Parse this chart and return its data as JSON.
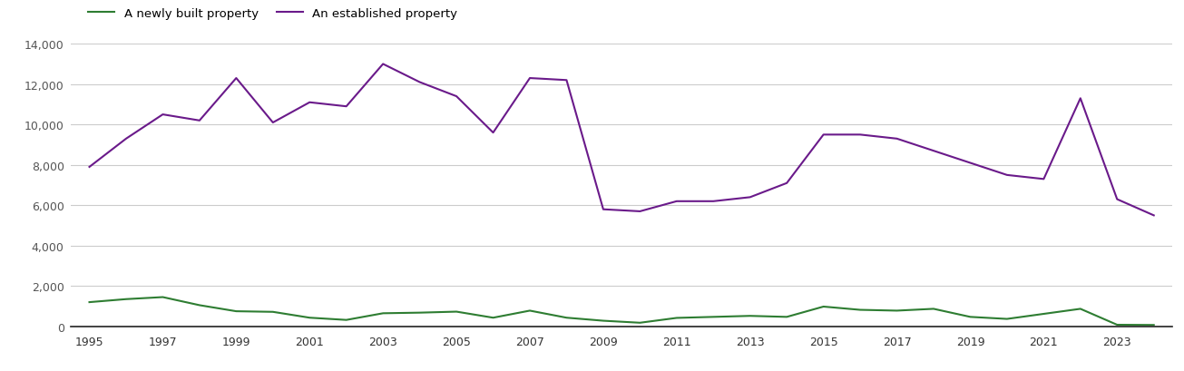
{
  "years": [
    1995,
    1996,
    1997,
    1998,
    1999,
    2000,
    2001,
    2002,
    2003,
    2004,
    2005,
    2006,
    2007,
    2008,
    2009,
    2010,
    2011,
    2012,
    2013,
    2014,
    2015,
    2016,
    2017,
    2018,
    2019,
    2020,
    2021,
    2022,
    2023,
    2024
  ],
  "new_homes": [
    1200,
    1350,
    1450,
    1050,
    750,
    720,
    430,
    320,
    650,
    680,
    730,
    430,
    780,
    430,
    280,
    180,
    420,
    470,
    520,
    470,
    980,
    820,
    780,
    870,
    470,
    370,
    620,
    870,
    80,
    70
  ],
  "established_homes": [
    7900,
    9300,
    10500,
    10200,
    12300,
    10100,
    11100,
    10900,
    13000,
    12100,
    11400,
    9600,
    12300,
    12200,
    5800,
    5700,
    6200,
    6200,
    6400,
    7100,
    9500,
    9500,
    9300,
    8700,
    8100,
    7500,
    7300,
    11300,
    6300,
    5500
  ],
  "new_homes_color": "#2e7d32",
  "established_homes_color": "#6a1a8a",
  "legend_new": "A newly built property",
  "legend_established": "An established property",
  "ylim": [
    0,
    14000
  ],
  "yticks": [
    0,
    2000,
    4000,
    6000,
    8000,
    10000,
    12000,
    14000
  ],
  "xticks": [
    1995,
    1997,
    1999,
    2001,
    2003,
    2005,
    2007,
    2009,
    2011,
    2013,
    2015,
    2017,
    2019,
    2021,
    2023
  ],
  "xlim_min": 1994.5,
  "xlim_max": 2024.5,
  "background_color": "#ffffff",
  "grid_color": "#cccccc",
  "line_width": 1.5
}
